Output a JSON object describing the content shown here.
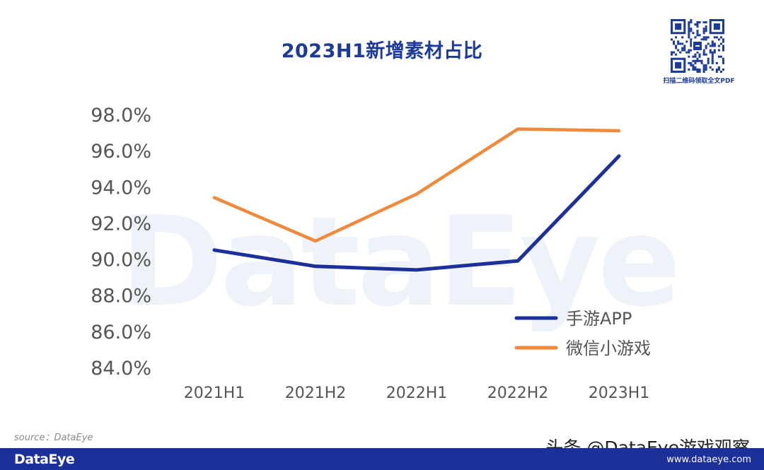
{
  "qr_caption": "扫描二维码领取全文PDF",
  "watermark": "DataEye",
  "source": "source：DataEye",
  "footer": {
    "logo": "DataEye",
    "url": "www.dataeye.com",
    "credit": "头条 @DataEye游戏观察"
  },
  "colors": {
    "app": "#1d2f99",
    "mini": "#f08a3a",
    "title": "#1b3a9a",
    "footer": "#1d2f99"
  },
  "chart_data": {
    "type": "line",
    "title": "2023H1新增素材占比",
    "categories": [
      "2021H1",
      "2021H2",
      "2022H1",
      "2022H2",
      "2023H1"
    ],
    "series": [
      {
        "name": "手游APP",
        "values": [
          90.5,
          89.6,
          89.4,
          89.9,
          95.7
        ]
      },
      {
        "name": "微信小游戏",
        "values": [
          93.4,
          91.0,
          93.6,
          97.2,
          97.1
        ]
      }
    ],
    "ylim": [
      84.0,
      98.0
    ],
    "yticks": [
      "84.0%",
      "86.0%",
      "88.0%",
      "90.0%",
      "92.0%",
      "94.0%",
      "96.0%",
      "98.0%"
    ],
    "grid": false,
    "legend": "bottom-right"
  }
}
